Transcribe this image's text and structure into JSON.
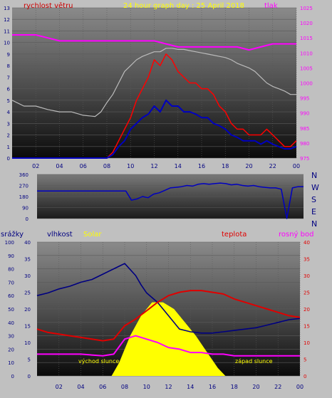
{
  "colors": {
    "page_bg": "#c0c0c0",
    "axis_text": "#000080",
    "grid": "#5a5a5a",
    "wind": "#ff0000",
    "gust_line": "#0000c0",
    "pressure": "#ff00ff",
    "temp_top": "#bbbbbb",
    "solar": "#ffff00",
    "humidity": "#000080",
    "temperature": "#e00000",
    "dew": "#ff00ff"
  },
  "top": {
    "title": "24 hour graph day : 25 April 2018",
    "left_label": "rychlost větru",
    "right_label": "tlak",
    "y_left_ticks": [
      "0",
      "1",
      "2",
      "3",
      "4",
      "5",
      "6",
      "7",
      "8",
      "9",
      "10",
      "11",
      "12",
      "13"
    ],
    "y_right_ticks": [
      "975",
      "980",
      "985",
      "990",
      "995",
      "1000",
      "1005",
      "1010",
      "1015",
      "1020",
      "1025"
    ]
  },
  "mid": {
    "y_ticks": [
      "0",
      "90",
      "180",
      "270",
      "360"
    ],
    "compass": [
      "N",
      "W",
      "S",
      "E",
      "N"
    ]
  },
  "bottom": {
    "label_rain": "srážky",
    "label_humidity": "vlhkost",
    "label_solar": "Solar",
    "label_temp": "teplota",
    "label_dew": "rosný bod",
    "sunrise": "východ slunce",
    "sunset": "západ slunce",
    "y_rain_ticks": [
      "0",
      "10",
      "20",
      "30",
      "40",
      "50",
      "60",
      "70",
      "80",
      "90",
      "100"
    ],
    "y_hum_ticks": [
      "0",
      "5",
      "10",
      "15",
      "20",
      "25",
      "30",
      "35",
      "40"
    ],
    "y_right_ticks": [
      "0",
      "5",
      "10",
      "15",
      "20",
      "25",
      "30",
      "35",
      "40"
    ]
  },
  "x_ticks": [
    "02",
    "04",
    "06",
    "08",
    "10",
    "12",
    "14",
    "16",
    "18",
    "20",
    "22",
    "00"
  ],
  "chart_data": [
    {
      "type": "line",
      "title": "24 hour graph day : 25 April 2018",
      "xlabel": "",
      "ylabel": "rychlost větru",
      "y2label": "tlak",
      "x_range": [
        0,
        24
      ],
      "ylim": [
        0,
        13
      ],
      "y2lim": [
        975,
        1025
      ],
      "x_ticks": [
        "02",
        "04",
        "06",
        "08",
        "10",
        "12",
        "14",
        "16",
        "18",
        "20",
        "22",
        "00"
      ],
      "grid": false,
      "series": [
        {
          "name": "rychlost větru",
          "axis": "left",
          "x": [
            0,
            8,
            8.5,
            9,
            9.5,
            10,
            10.5,
            11,
            11.5,
            12,
            12.5,
            13,
            13.5,
            14,
            14.5,
            15,
            15.5,
            16,
            16.5,
            17,
            17.5,
            18,
            18.5,
            19,
            19.5,
            20,
            20.5,
            21,
            21.5,
            22,
            22.5,
            23,
            23.5,
            24
          ],
          "values": [
            0,
            0,
            0.5,
            1.5,
            2.5,
            3.5,
            5,
            6,
            7,
            8.5,
            8,
            9,
            8.5,
            7.5,
            7,
            6.5,
            6.5,
            6,
            6,
            5.5,
            4.5,
            4,
            3,
            2.5,
            2.5,
            2,
            2,
            2,
            2.5,
            2,
            1.5,
            1,
            1,
            1.5
          ]
        },
        {
          "x": [
            0,
            8,
            8.5,
            9,
            9.5,
            10,
            10.5,
            11,
            11.5,
            12,
            12.5,
            13,
            13.5,
            14,
            14.5,
            15,
            15.5,
            16,
            16.5,
            17,
            17.5,
            18,
            18.5,
            19,
            19.5,
            20,
            20.5,
            21,
            21.5,
            22,
            22.5,
            23,
            23.5,
            24
          ],
          "values": [
            0,
            0,
            0.3,
            1,
            1.5,
            2.5,
            3,
            3.5,
            3.8,
            4.5,
            4,
            5,
            4.5,
            4.5,
            4,
            4,
            3.8,
            3.5,
            3.5,
            3,
            2.8,
            2.5,
            2,
            1.8,
            1.5,
            1.5,
            1.5,
            1.2,
            1.5,
            1.2,
            1,
            0.8,
            0.8,
            1
          ]
        },
        {
          "x": [
            0,
            1,
            2,
            3,
            4,
            5,
            6,
            7,
            7.5,
            8,
            8.5,
            9,
            9.5,
            10,
            10.5,
            11,
            11.5,
            12,
            12.5,
            13,
            13.5,
            14,
            14.5,
            15,
            15.5,
            16,
            16.5,
            17,
            17.5,
            18,
            18.5,
            19,
            19.5,
            20,
            20.5,
            21,
            21.5,
            22,
            22.5,
            23,
            23.5,
            24
          ],
          "values": [
            5,
            4.5,
            4.5,
            4.2,
            4,
            4,
            3.7,
            3.6,
            4,
            4.8,
            5.5,
            6.5,
            7.5,
            8,
            8.5,
            8.8,
            9,
            9.2,
            9.2,
            9.5,
            9.5,
            9.4,
            9.4,
            9.3,
            9.2,
            9.1,
            9,
            8.9,
            8.8,
            8.7,
            8.5,
            8.2,
            8,
            7.8,
            7.5,
            7,
            6.5,
            6.2,
            6,
            5.8,
            5.5,
            5.5
          ]
        },
        {
          "name": "tlak",
          "axis": "right",
          "x": [
            0,
            2,
            3,
            4,
            6,
            8,
            9,
            10,
            11,
            12,
            13,
            14,
            15,
            16,
            17,
            18,
            19,
            20,
            21,
            22,
            23,
            24
          ],
          "values": [
            1016,
            1016,
            1015,
            1014,
            1014,
            1014,
            1014,
            1014,
            1014,
            1014,
            1013,
            1012,
            1012,
            1012,
            1012,
            1012,
            1012,
            1011,
            1012,
            1013,
            1013,
            1013
          ]
        }
      ]
    },
    {
      "type": "line",
      "xlabel": "",
      "ylabel": "",
      "x_range": [
        0,
        24
      ],
      "ylim": [
        0,
        360
      ],
      "y_ticks": [
        "0",
        "90",
        "180",
        "270",
        "360"
      ],
      "grid": false,
      "series": [
        {
          "x": [
            0,
            7,
            8,
            8.5,
            9,
            9.5,
            10,
            10.5,
            11,
            11.5,
            12,
            12.5,
            13,
            13.5,
            14,
            14.5,
            15,
            15.5,
            16,
            16.5,
            17,
            17.5,
            18,
            18.5,
            19,
            19.5,
            20,
            20.5,
            21,
            21.5,
            22,
            22.5,
            23,
            23.5,
            24
          ],
          "values": [
            225,
            225,
            225,
            150,
            160,
            180,
            170,
            200,
            210,
            230,
            250,
            255,
            260,
            270,
            265,
            280,
            285,
            280,
            285,
            290,
            285,
            275,
            280,
            270,
            265,
            270,
            260,
            255,
            250,
            250,
            240,
            0,
            250,
            260,
            260
          ]
        }
      ]
    },
    {
      "type": "area",
      "xlabel": "",
      "x_range": [
        0,
        24
      ],
      "ylim": [
        0,
        100
      ],
      "y2lim": [
        0,
        40
      ],
      "x_ticks": [
        "02",
        "04",
        "06",
        "08",
        "10",
        "12",
        "14",
        "16",
        "18",
        "20",
        "22",
        "00"
      ],
      "grid": false,
      "series": [
        {
          "name": "Solar",
          "axis": "left",
          "x": [
            6.8,
            7.5,
            8.5,
            9.5,
            10.5,
            11,
            11.5,
            12.5,
            13.5,
            14.5,
            15.5,
            16.5,
            17.2
          ],
          "values": [
            0,
            10,
            30,
            45,
            55,
            55,
            55,
            50,
            40,
            30,
            18,
            6,
            0
          ]
        },
        {
          "name": "vlhkost",
          "axis": "left",
          "x": [
            0,
            1,
            2,
            3,
            4,
            5,
            6,
            7,
            8,
            9,
            9.5,
            10,
            11,
            12,
            13,
            14,
            15,
            16,
            17,
            18,
            19,
            20,
            21,
            22,
            23,
            24
          ],
          "values": [
            60,
            62,
            65,
            67,
            70,
            72,
            76,
            80,
            84,
            75,
            68,
            62,
            55,
            45,
            35,
            33,
            32,
            32,
            33,
            34,
            35,
            36,
            38,
            40,
            42,
            43
          ]
        },
        {
          "name": "teplota",
          "axis": "right",
          "x": [
            0,
            1,
            2,
            3,
            4,
            5,
            6,
            7,
            8,
            9,
            10,
            11,
            12,
            13,
            14,
            15,
            16,
            17,
            18,
            19,
            20,
            21,
            22,
            23,
            24
          ],
          "values": [
            14,
            13,
            12.5,
            12,
            11.5,
            11,
            10.5,
            11,
            15,
            17,
            19.5,
            22,
            24,
            25,
            25.5,
            25.5,
            25,
            24.5,
            23,
            22,
            21,
            20,
            19,
            18,
            17.5
          ]
        },
        {
          "name": "rosný bod",
          "axis": "right",
          "x": [
            0,
            2,
            4,
            6,
            7,
            8,
            9,
            10,
            11,
            12,
            13,
            14,
            15,
            16,
            17,
            18,
            20,
            22,
            24
          ],
          "values": [
            6.5,
            6.5,
            6.5,
            6,
            6.5,
            11,
            12,
            11,
            10,
            8.5,
            8,
            7,
            7,
            6.5,
            6.5,
            6,
            6,
            6,
            6
          ]
        }
      ]
    }
  ]
}
